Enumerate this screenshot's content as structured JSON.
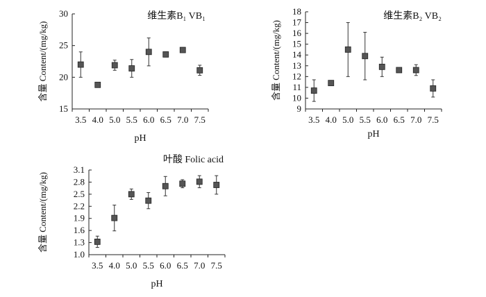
{
  "chart_data": [
    {
      "id": "vb1",
      "type": "scatter",
      "title": "维生素B₁ VB₁",
      "xlabel": "pH",
      "ylabel": "含量 Content/(mg/kg)",
      "x": [
        "3.5",
        "4.0",
        "5.0",
        "5.5",
        "6.0",
        "6.5",
        "7.0",
        "7.5"
      ],
      "values": [
        22.0,
        18.8,
        21.9,
        21.4,
        24.0,
        23.6,
        24.3,
        21.1
      ],
      "errors": [
        2.0,
        0.0,
        0.8,
        1.4,
        2.2,
        0.4,
        0.4,
        0.8
      ],
      "ylim": [
        15,
        30
      ],
      "yticks": [
        15,
        20,
        25,
        30
      ],
      "ytick_labels": [
        "15",
        "20",
        "25",
        "30"
      ]
    },
    {
      "id": "vb2",
      "type": "scatter",
      "title": "维生素B₂ VB₂",
      "xlabel": "pH",
      "ylabel": "含量 Content/(mg/kg)",
      "x": [
        "3.5",
        "4.0",
        "5.0",
        "5.5",
        "6.0",
        "6.5",
        "7.0",
        "7.5"
      ],
      "values": [
        10.7,
        11.4,
        14.5,
        13.9,
        12.9,
        12.6,
        12.6,
        10.9
      ],
      "errors": [
        1.0,
        0.0,
        2.5,
        2.2,
        0.9,
        0.0,
        0.5,
        0.8
      ],
      "ylim": [
        9,
        18
      ],
      "yticks": [
        9,
        10,
        11,
        12,
        13,
        14,
        15,
        16,
        17,
        18
      ],
      "ytick_labels": [
        "9",
        "10",
        "11",
        "12",
        "13",
        "14",
        "15",
        "16",
        "17",
        "18"
      ]
    },
    {
      "id": "folic",
      "type": "scatter",
      "title": "叶酸 Folic acid",
      "xlabel": "pH",
      "ylabel": "含量 Content/(mg/kg)",
      "x": [
        "3.5",
        "4.0",
        "5.0",
        "5.5",
        "6.0",
        "6.5",
        "7.0",
        "7.5"
      ],
      "values": [
        1.32,
        1.91,
        2.5,
        2.34,
        2.7,
        2.76,
        2.81,
        2.73
      ],
      "errors": [
        0.14,
        0.32,
        0.13,
        0.2,
        0.24,
        0.1,
        0.15,
        0.23
      ],
      "ylim": [
        1.0,
        3.1
      ],
      "yticks": [
        1.0,
        1.3,
        1.6,
        1.9,
        2.2,
        2.5,
        2.8,
        3.1
      ],
      "ytick_labels": [
        "1.0",
        "1.3",
        "1.6",
        "1.9",
        "2.2",
        "2.5",
        "2.8",
        "3.1"
      ]
    }
  ]
}
